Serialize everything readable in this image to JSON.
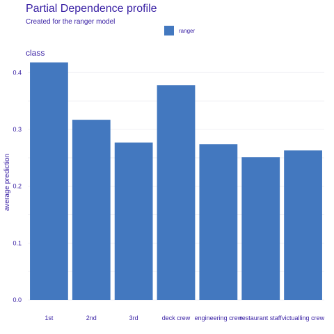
{
  "chart_data": {
    "type": "bar",
    "title": "Partial Dependence profile",
    "subtitle": "Created for the ranger model",
    "panel_title": "class",
    "ylabel": "average prediction",
    "xlabel": "",
    "categories": [
      "1st",
      "2nd",
      "3rd",
      "deck crew",
      "engineering crew",
      "restaurant staff",
      "victualling crew"
    ],
    "series": [
      {
        "name": "ranger",
        "values": [
          0.418,
          0.317,
          0.277,
          0.378,
          0.274,
          0.251,
          0.263
        ]
      }
    ],
    "ylim": [
      0,
      0.42
    ],
    "yticks": [
      "0.0",
      "0.1",
      "0.2",
      "0.3",
      "0.4"
    ],
    "grid": true,
    "legend_position": "top-center",
    "colors": {
      "bar": "#4378bf",
      "text": "#371ea3",
      "grid": "#f0f0f4"
    }
  }
}
